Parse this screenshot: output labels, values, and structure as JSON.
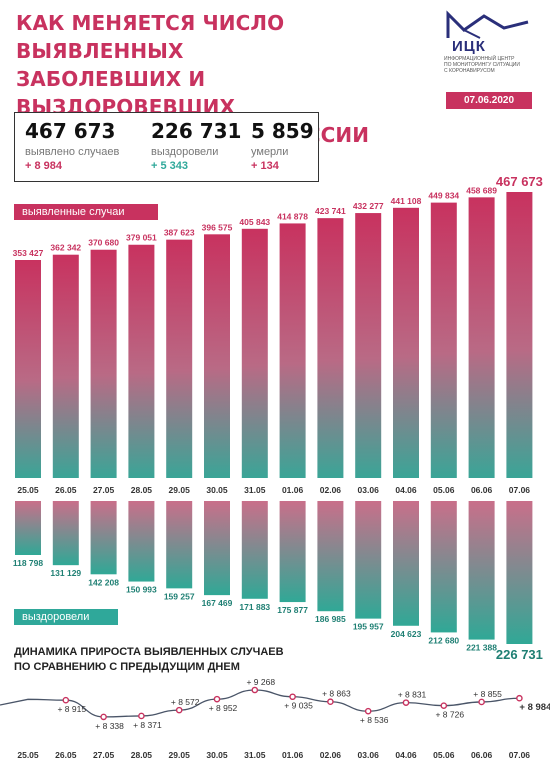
{
  "header": {
    "title_lines": [
      "КАК МЕНЯЕТСЯ ЧИСЛО ВЫЯВЛЕННЫХ",
      "ЗАБОЛЕВШИХ И ВЫЗДОРОВЕВШИХ",
      "ОТ КОРОНАВИРУСА В РОССИИ"
    ],
    "logo_name": "ИЦК",
    "logo_sub_lines": [
      "ИНФОРМАЦИОННЫЙ ЦЕНТР",
      "ПО МОНИТОРИНГУ СИТУАЦИИ",
      "С КОРОНАВИРУСОМ"
    ],
    "date": "07.06.2020"
  },
  "summary": [
    {
      "value": "467 673",
      "label": "выявлено случаев",
      "delta": "+ 8 984"
    },
    {
      "value": "226 731",
      "label": "выздоровели",
      "delta": "+ 5 343"
    },
    {
      "value": "5 859",
      "label": "умерли",
      "delta": "+ 134"
    }
  ],
  "colors": {
    "accent": "#c8325f",
    "teal": "#2fa89a",
    "line": "#4a5568"
  },
  "chart_data": [
    {
      "type": "bar",
      "label": "выявленные случаи",
      "categories": [
        "25.05",
        "26.05",
        "27.05",
        "28.05",
        "29.05",
        "30.05",
        "31.05",
        "01.06",
        "02.06",
        "03.06",
        "04.06",
        "05.06",
        "06.06",
        "07.06"
      ],
      "values": [
        353427,
        362342,
        370680,
        379051,
        387623,
        396575,
        405843,
        414878,
        423741,
        432277,
        441108,
        449834,
        458689,
        467673
      ],
      "value_labels": [
        "353 427",
        "362 342",
        "370 680",
        "379 051",
        "387 623",
        "396 575",
        "405 843",
        "414 878",
        "423 741",
        "432 277",
        "441 108",
        "449 834",
        "458 689",
        "467 673"
      ]
    },
    {
      "type": "bar",
      "label": "выздоровели",
      "categories": [
        "25.05",
        "26.05",
        "27.05",
        "28.05",
        "29.05",
        "30.05",
        "31.05",
        "01.06",
        "02.06",
        "03.06",
        "04.06",
        "05.06",
        "06.06",
        "07.06"
      ],
      "values": [
        118798,
        131129,
        142208,
        150993,
        159257,
        167469,
        171883,
        175877,
        186985,
        195957,
        204623,
        212680,
        221388,
        226731
      ],
      "value_labels": [
        "118 798",
        "131 129",
        "142 208",
        "150 993",
        "159 257",
        "167 469",
        "171 883",
        "175 877",
        "186 985",
        "195 957",
        "204 623",
        "212 680",
        "221 388",
        "226 731"
      ]
    },
    {
      "type": "line",
      "title_lines": [
        "ДИНАМИКА ПРИРОСТА ВЫЯВЛЕННЫХ СЛУЧАЕВ",
        "ПО СРАВНЕНИЮ С ПРЕДЫДУЩИМ ДНЕМ"
      ],
      "categories": [
        "25.05",
        "26.05",
        "27.05",
        "28.05",
        "29.05",
        "30.05",
        "31.05",
        "01.06",
        "02.06",
        "03.06",
        "04.06",
        "05.06",
        "06.06",
        "07.06"
      ],
      "values": [
        8946,
        8915,
        8338,
        8371,
        8572,
        8952,
        9268,
        9035,
        8863,
        8536,
        8831,
        8726,
        8855,
        8984
      ],
      "value_labels": [
        "",
        "+ 8 915",
        "+ 8 338",
        "+ 8 371",
        "+ 8 572",
        "+ 8 952",
        "+ 9 268",
        "+ 9 035",
        "+ 8 863",
        "+ 8 536",
        "+ 8 831",
        "+ 8 726",
        "+ 8 855",
        "+ 8 984"
      ]
    }
  ]
}
